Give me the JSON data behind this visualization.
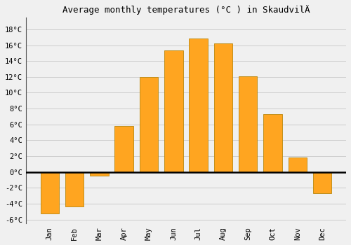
{
  "title": "Average monthly temperatures (°C ) in SkaudvilÄ",
  "months": [
    "Jan",
    "Feb",
    "Mar",
    "Apr",
    "May",
    "Jun",
    "Jul",
    "Aug",
    "Sep",
    "Oct",
    "Nov",
    "Dec"
  ],
  "values": [
    -5.2,
    -4.3,
    -0.5,
    5.8,
    12.0,
    15.3,
    16.8,
    16.2,
    12.1,
    7.3,
    1.8,
    -2.7
  ],
  "bar_color": "#FFA520",
  "bar_edge_color": "#B8860B",
  "ylim": [
    -6.5,
    19.5
  ],
  "yticks": [
    -6,
    -4,
    -2,
    0,
    2,
    4,
    6,
    8,
    10,
    12,
    14,
    16,
    18
  ],
  "ytick_labels": [
    "-6°C",
    "-4°C",
    "-2°C",
    "0°C",
    "2°C",
    "4°C",
    "6°C",
    "8°C",
    "10°C",
    "12°C",
    "14°C",
    "16°C",
    "18°C"
  ],
  "background_color": "#f0f0f0",
  "plot_bg_color": "#f0f0f0",
  "grid_color": "#cccccc",
  "title_fontsize": 9,
  "tick_fontsize": 7.5,
  "bar_width": 0.75,
  "zero_line_color": "#000000",
  "left_spine_color": "#555555"
}
